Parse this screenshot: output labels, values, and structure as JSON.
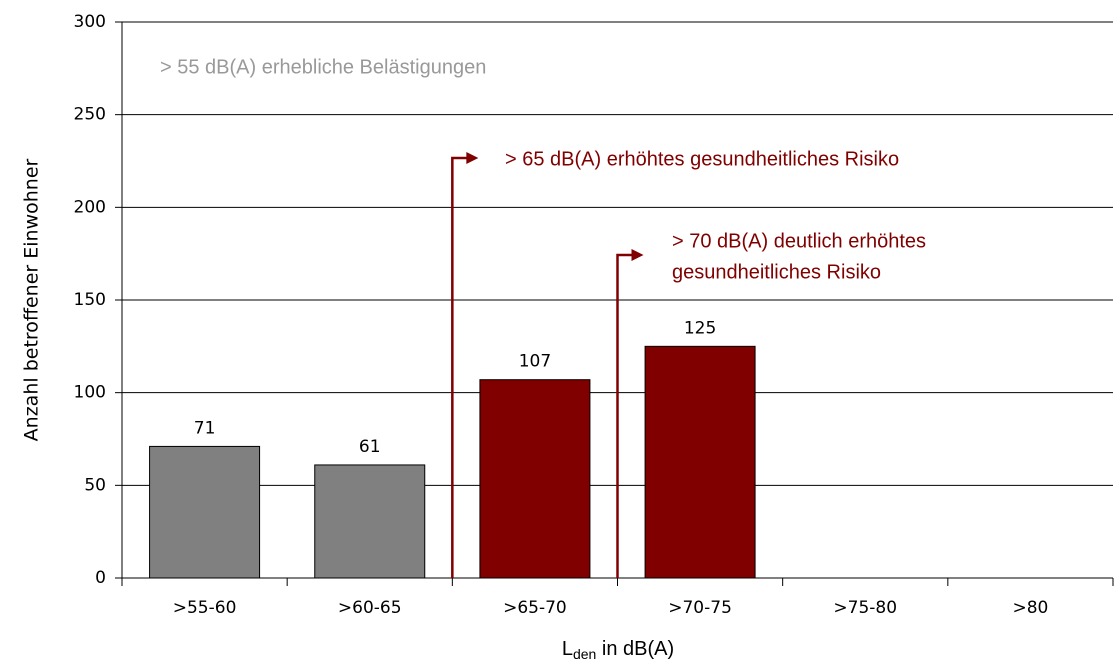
{
  "chart_data": {
    "type": "bar",
    "categories": [
      ">55-60",
      ">60-65",
      ">65-70",
      ">70-75",
      ">75-80",
      ">80"
    ],
    "values": [
      71,
      61,
      107,
      125,
      null,
      null
    ],
    "colors": [
      "#808080",
      "#808080",
      "#800000",
      "#800000",
      "#800000",
      "#800000"
    ],
    "ylim": [
      0,
      300
    ],
    "yticks": [
      0,
      50,
      100,
      150,
      200,
      250,
      300
    ],
    "grid": true,
    "y_label": "Anzahl betroffener Einwohner",
    "x_label": {
      "main": "L",
      "sub": "den",
      "rest": " in dB(A)"
    },
    "annotations": [
      {
        "lines": [
          "> 55 dB(A) erhebliche Belästigungen"
        ],
        "color": "#999999"
      },
      {
        "lines": [
          "> 65 dB(A) erhöhtes gesundheitliches Risiko"
        ],
        "color": "#800000"
      },
      {
        "lines": [
          "> 70 dB(A) deutlich erhöhtes",
          "gesundheitliches Risiko"
        ],
        "color": "#800000"
      }
    ]
  }
}
